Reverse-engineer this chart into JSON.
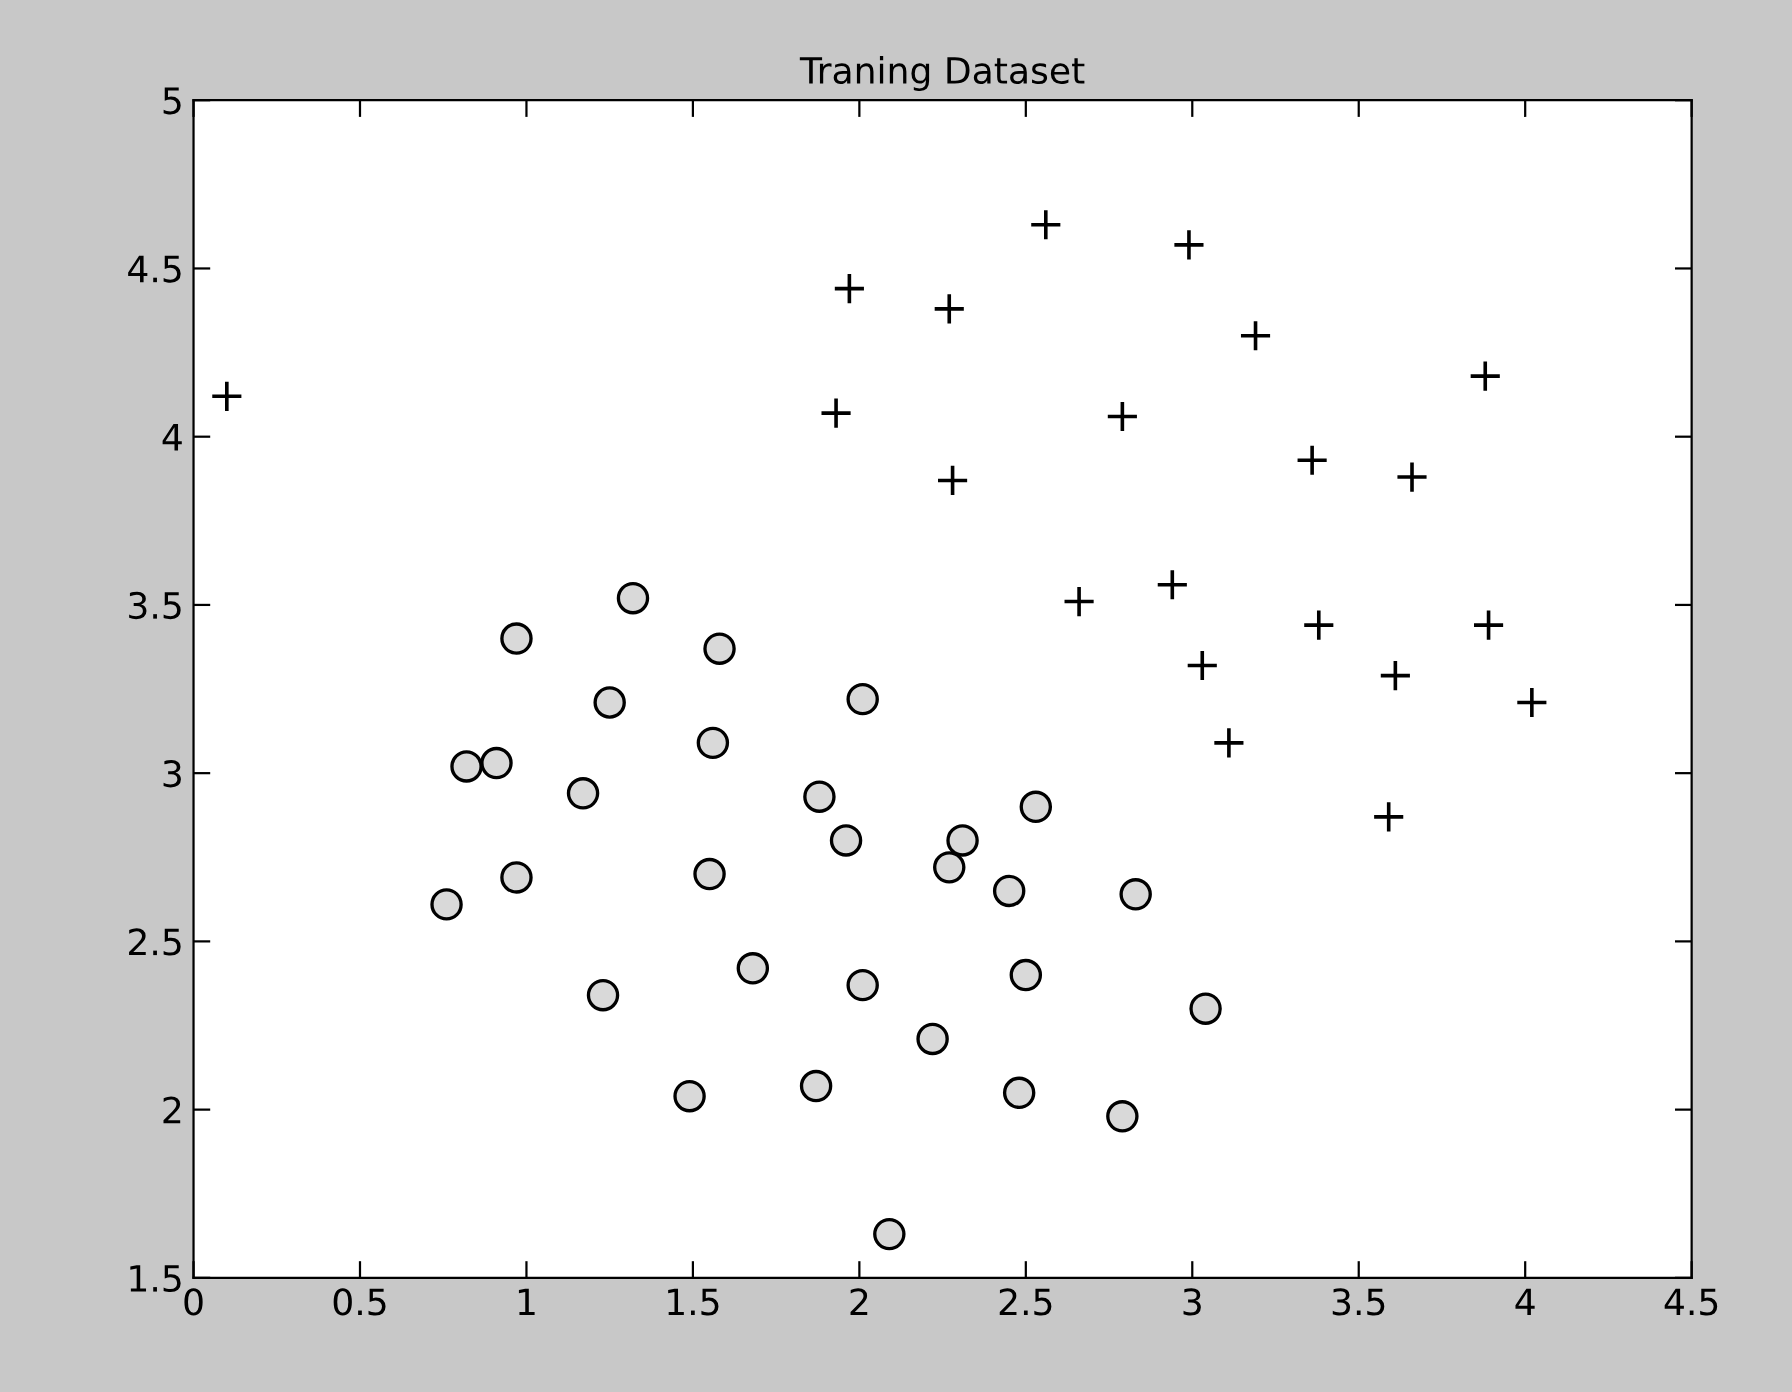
{
  "chart_data": {
    "type": "scatter",
    "title": "Traning Dataset",
    "xlim": [
      0,
      4.5
    ],
    "ylim": [
      1.5,
      5
    ],
    "xticks": [
      0,
      0.5,
      1,
      1.5,
      2,
      2.5,
      3,
      3.5,
      4,
      4.5
    ],
    "yticks": [
      1.5,
      2,
      2.5,
      3,
      3.5,
      4,
      4.5,
      5
    ],
    "grid": false,
    "series": [
      {
        "color": "#000000",
        "marker": "cross",
        "x": [
          0.1,
          1.97,
          2.56,
          2.27,
          1.93,
          2.28,
          2.99,
          3.19,
          2.79,
          3.36,
          3.66,
          3.88,
          2.66,
          2.94,
          3.03,
          3.38,
          3.11,
          3.89,
          3.61,
          4.02,
          3.59
        ],
        "values": [
          4.12,
          4.44,
          4.63,
          4.38,
          4.07,
          3.87,
          4.57,
          4.3,
          4.06,
          3.93,
          3.88,
          4.18,
          3.51,
          3.56,
          3.32,
          3.44,
          3.09,
          3.44,
          3.29,
          3.21,
          2.87
        ]
      },
      {
        "color": "#d9d9d9",
        "marker": "circle",
        "x": [
          0.76,
          0.82,
          0.91,
          0.97,
          0.97,
          1.17,
          1.25,
          1.23,
          1.32,
          1.58,
          1.56,
          1.55,
          1.68,
          1.49,
          1.88,
          1.96,
          2.01,
          2.01,
          1.87,
          2.09,
          2.31,
          2.27,
          2.45,
          2.53,
          2.5,
          2.22,
          2.48,
          2.83,
          2.79,
          3.04
        ],
        "values": [
          2.61,
          3.02,
          3.03,
          3.4,
          2.69,
          2.94,
          3.21,
          2.34,
          3.52,
          3.37,
          3.09,
          2.7,
          2.42,
          2.04,
          2.93,
          2.8,
          3.22,
          2.37,
          2.07,
          1.63,
          2.8,
          2.72,
          2.65,
          2.9,
          2.4,
          2.21,
          2.05,
          2.64,
          1.98,
          2.3
        ]
      }
    ]
  }
}
